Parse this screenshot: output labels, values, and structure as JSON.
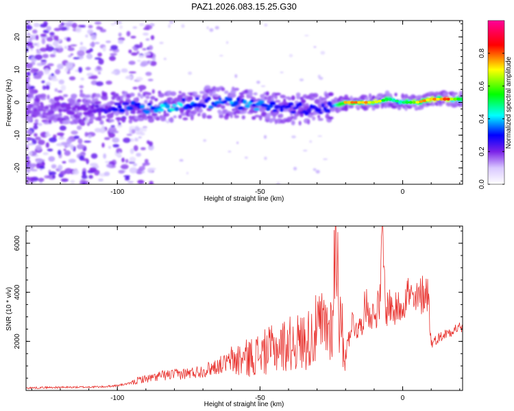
{
  "chart_data": [
    {
      "type": "heatmap",
      "title": "PAZ1.2026.083.15.25.G30",
      "xlabel": "Height of straight line (km)",
      "ylabel": "Frequency (Hz)",
      "xlim": [
        -132,
        21
      ],
      "ylim": [
        -25,
        25
      ],
      "x_ticks": [
        -100,
        -50,
        0
      ],
      "y_ticks": [
        -20,
        -10,
        0,
        10,
        20
      ],
      "colorbar": {
        "label": "Normalized spectral amplitude",
        "range": [
          0,
          1
        ],
        "ticks": [
          "0.0",
          "0.2",
          "0.4",
          "0.6",
          "0.8"
        ],
        "colormap": [
          "#ffffff",
          "#c8b4ff",
          "#7b22e8",
          "#0000ff",
          "#00ffff",
          "#00ff00",
          "#ffff00",
          "#ff0000",
          "#ff0099"
        ]
      },
      "center_frequency_track": {
        "x": [
          -132,
          -110,
          -100,
          -90,
          -80,
          -70,
          -60,
          -50,
          -40,
          -30,
          -25,
          -20,
          -15,
          -10,
          -5,
          0,
          5,
          10,
          15,
          21
        ],
        "frequency": [
          -2,
          -2,
          -1.5,
          -1.5,
          -1,
          0,
          0,
          -1,
          -2,
          -2,
          -1,
          0,
          0,
          0,
          1,
          0,
          0,
          1,
          1,
          1
        ],
        "peak_amplitude": [
          0.15,
          0.2,
          0.3,
          0.4,
          0.45,
          0.35,
          0.4,
          0.4,
          0.3,
          0.3,
          0.35,
          0.75,
          0.8,
          0.75,
          0.55,
          0.5,
          0.75,
          0.8,
          0.85,
          0.5
        ]
      }
    },
    {
      "type": "line",
      "xlabel": "Height of straight line (km)",
      "ylabel": "SNR (10 * v/v)",
      "xlim": [
        -132,
        21
      ],
      "ylim": [
        0,
        6700
      ],
      "x_ticks": [
        -100,
        -50,
        0
      ],
      "y_ticks": [
        2000,
        4000,
        6000
      ],
      "color": "#e8302c",
      "series": [
        {
          "x": [
            -132,
            -125,
            -115,
            -105,
            -100,
            -95,
            -92,
            -88,
            -85,
            -80,
            -75,
            -70,
            -65,
            -60,
            -55,
            -50,
            -45,
            -40,
            -35,
            -32,
            -30,
            -28,
            -25,
            -23,
            -22,
            -21,
            -20,
            -18,
            -15,
            -13,
            -12,
            -10,
            -8,
            -7,
            -6,
            -5,
            -3,
            0,
            2,
            4,
            6,
            8,
            9,
            10,
            12,
            15,
            18,
            21
          ],
          "y": [
            100,
            120,
            130,
            150,
            200,
            300,
            450,
            500,
            600,
            650,
            700,
            800,
            1000,
            1200,
            1300,
            1500,
            1700,
            1900,
            2000,
            2200,
            2500,
            2600,
            2600,
            6700,
            2600,
            2200,
            1400,
            2800,
            2500,
            3500,
            3300,
            3000,
            3600,
            6500,
            3000,
            3600,
            3200,
            3600,
            4000,
            3500,
            3800,
            4100,
            3900,
            1900,
            2100,
            2300,
            2500,
            2600
          ]
        }
      ]
    }
  ]
}
